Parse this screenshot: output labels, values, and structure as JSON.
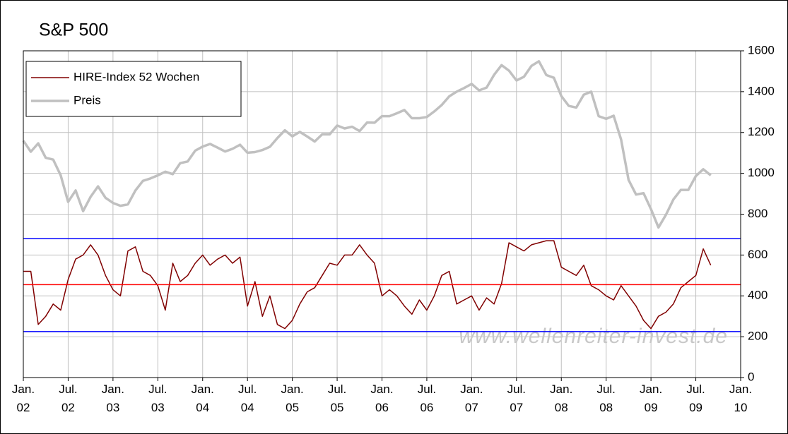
{
  "chart_data": {
    "type": "line",
    "title": "S&P 500",
    "watermark": "www.wellenreiter-invest.de",
    "x": [
      "2002-01",
      "2002-02",
      "2002-03",
      "2002-04",
      "2002-05",
      "2002-06",
      "2002-07",
      "2002-08",
      "2002-09",
      "2002-10",
      "2002-11",
      "2002-12",
      "2003-01",
      "2003-02",
      "2003-03",
      "2003-04",
      "2003-05",
      "2003-06",
      "2003-07",
      "2003-08",
      "2003-09",
      "2003-10",
      "2003-11",
      "2003-12",
      "2004-01",
      "2004-02",
      "2004-03",
      "2004-04",
      "2004-05",
      "2004-06",
      "2004-07",
      "2004-08",
      "2004-09",
      "2004-10",
      "2004-11",
      "2004-12",
      "2005-01",
      "2005-02",
      "2005-03",
      "2005-04",
      "2005-05",
      "2005-06",
      "2005-07",
      "2005-08",
      "2005-09",
      "2005-10",
      "2005-11",
      "2005-12",
      "2006-01",
      "2006-02",
      "2006-03",
      "2006-04",
      "2006-05",
      "2006-06",
      "2006-07",
      "2006-08",
      "2006-09",
      "2006-10",
      "2006-11",
      "2006-12",
      "2007-01",
      "2007-02",
      "2007-03",
      "2007-04",
      "2007-05",
      "2007-06",
      "2007-07",
      "2007-08",
      "2007-09",
      "2007-10",
      "2007-11",
      "2007-12",
      "2008-01",
      "2008-02",
      "2008-03",
      "2008-04",
      "2008-05",
      "2008-06",
      "2008-07",
      "2008-08",
      "2008-09",
      "2008-10",
      "2008-11",
      "2008-12",
      "2009-01",
      "2009-02",
      "2009-03",
      "2009-04",
      "2009-05",
      "2009-06",
      "2009-07",
      "2009-08",
      "2009-09"
    ],
    "series": [
      {
        "name": "HIRE-Index 52 Wochen",
        "color": "#800000",
        "width": 1.5,
        "values": [
          520,
          520,
          260,
          300,
          360,
          330,
          480,
          580,
          600,
          650,
          600,
          500,
          430,
          400,
          620,
          640,
          520,
          500,
          450,
          330,
          560,
          470,
          500,
          560,
          600,
          550,
          580,
          600,
          560,
          590,
          350,
          470,
          300,
          400,
          260,
          240,
          280,
          360,
          420,
          440,
          500,
          560,
          550,
          600,
          600,
          650,
          600,
          560,
          400,
          430,
          400,
          350,
          310,
          380,
          330,
          400,
          500,
          520,
          360,
          380,
          400,
          330,
          390,
          360,
          460,
          660,
          640,
          620,
          650,
          660,
          670,
          670,
          540,
          520,
          500,
          550,
          450,
          430,
          400,
          380,
          450,
          400,
          350,
          280,
          240,
          300,
          320,
          360,
          440,
          470,
          500,
          630,
          550
        ]
      },
      {
        "name": "Preis",
        "color": "#c0c0c0",
        "width": 3.5,
        "values": [
          1160,
          1106,
          1147,
          1076,
          1067,
          990,
          860,
          916,
          815,
          885,
          936,
          880,
          855,
          841,
          848,
          916,
          963,
          975,
          990,
          1008,
          996,
          1050,
          1058,
          1111,
          1131,
          1144,
          1126,
          1107,
          1120,
          1140,
          1101,
          1104,
          1114,
          1130,
          1173,
          1211,
          1181,
          1203,
          1180,
          1156,
          1191,
          1191,
          1234,
          1220,
          1228,
          1207,
          1249,
          1248,
          1280,
          1280,
          1294,
          1310,
          1270,
          1270,
          1276,
          1303,
          1335,
          1377,
          1400,
          1418,
          1438,
          1406,
          1420,
          1482,
          1530,
          1503,
          1455,
          1473,
          1526,
          1549,
          1481,
          1468,
          1378,
          1330,
          1322,
          1385,
          1400,
          1280,
          1267,
          1282,
          1166,
          968,
          896,
          903,
          825,
          735,
          797,
          872,
          919,
          919,
          987,
          1020,
          990
        ]
      }
    ],
    "hlines": [
      {
        "value": 680,
        "color": "#0000ff"
      },
      {
        "value": 455,
        "color": "#ff0000"
      },
      {
        "value": 225,
        "color": "#0000ff"
      }
    ],
    "xlim": [
      "2002-01",
      "2010-01"
    ],
    "xticks": [
      {
        "value": "2002-01",
        "label": "Jan.\n02"
      },
      {
        "value": "2002-07",
        "label": "Jul.\n02"
      },
      {
        "value": "2003-01",
        "label": "Jan.\n03"
      },
      {
        "value": "2003-07",
        "label": "Jul.\n03"
      },
      {
        "value": "2004-01",
        "label": "Jan.\n04"
      },
      {
        "value": "2004-07",
        "label": "Jul.\n04"
      },
      {
        "value": "2005-01",
        "label": "Jan.\n05"
      },
      {
        "value": "2005-07",
        "label": "Jul.\n05"
      },
      {
        "value": "2006-01",
        "label": "Jan.\n06"
      },
      {
        "value": "2006-07",
        "label": "Jul.\n06"
      },
      {
        "value": "2007-01",
        "label": "Jan.\n07"
      },
      {
        "value": "2007-07",
        "label": "Jul.\n07"
      },
      {
        "value": "2008-01",
        "label": "Jan.\n08"
      },
      {
        "value": "2008-07",
        "label": "Jul.\n08"
      },
      {
        "value": "2009-01",
        "label": "Jan.\n09"
      },
      {
        "value": "2009-07",
        "label": "Jul.\n09"
      },
      {
        "value": "2010-01",
        "label": "Jan.\n10"
      }
    ],
    "ylim": [
      0,
      1600
    ],
    "yticks": [
      0,
      200,
      400,
      600,
      800,
      1000,
      1200,
      1400,
      1600
    ],
    "grid": true,
    "legend": "upper left"
  }
}
